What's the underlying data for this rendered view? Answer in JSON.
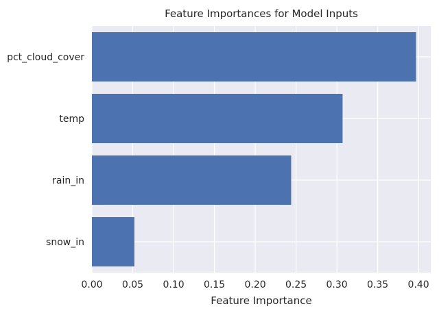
{
  "chart_data": {
    "type": "bar",
    "orientation": "horizontal",
    "title": "Feature Importances for Model Inputs",
    "xlabel": "Feature Importance",
    "ylabel": "",
    "categories": [
      "pct_cloud_cover",
      "temp",
      "rain_in",
      "snow_in"
    ],
    "values": [
      0.397,
      0.307,
      0.244,
      0.052
    ],
    "xlim": [
      0.0,
      0.415
    ],
    "xticks": [
      0.0,
      0.05,
      0.1,
      0.15,
      0.2,
      0.25,
      0.3,
      0.35,
      0.4
    ],
    "xtick_labels": [
      "0.00",
      "0.05",
      "0.10",
      "0.15",
      "0.20",
      "0.25",
      "0.30",
      "0.35",
      "0.40"
    ],
    "grid": true,
    "bar_color": "#4c72b0",
    "background_color": "#eaeaf2",
    "grid_color": "#ffffff"
  }
}
